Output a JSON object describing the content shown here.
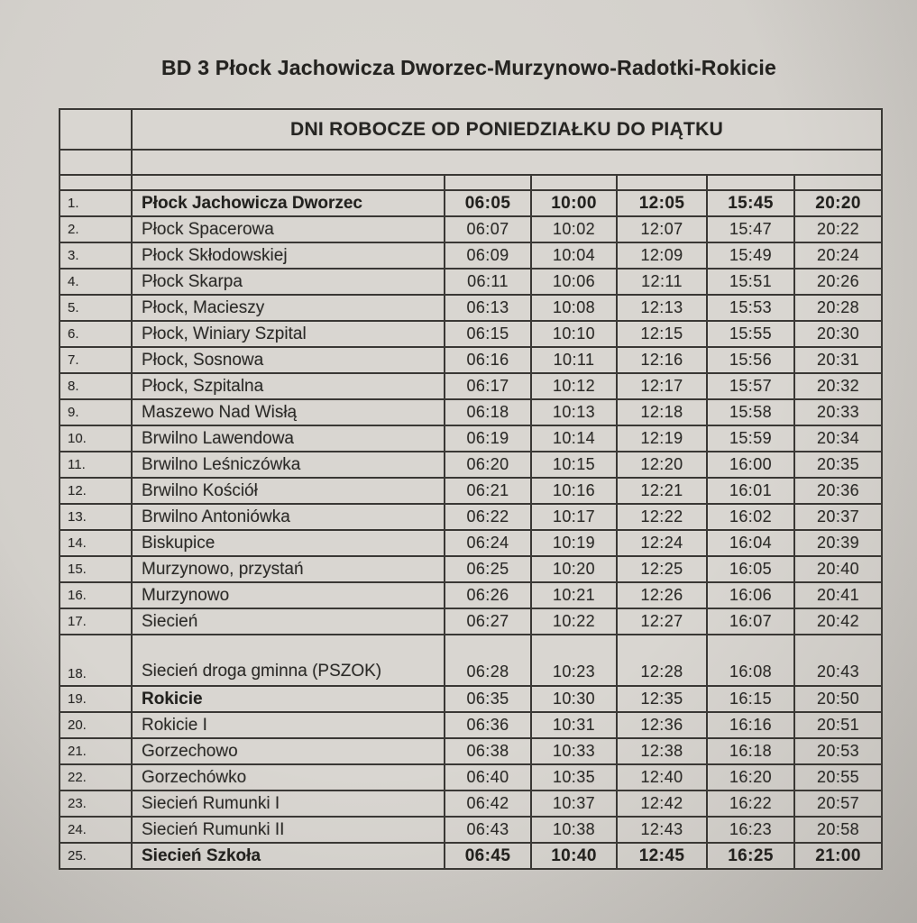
{
  "title": "BD 3 Płock Jachowicza Dworzec-Murzynowo-Radotki-Rokicie",
  "schedule_header": "DNI ROBOCZE OD PONIEDZIAŁKU DO PIĄTKU",
  "colors": {
    "paper": "#d9d6d1",
    "header_band_fill": "#e0ddd8",
    "black_band": "#21201e",
    "border": "#3a3835",
    "text": "#2b2a27"
  },
  "table": {
    "rows": [
      {
        "num": "1.",
        "stop": "Płock Jachowicza Dworzec",
        "times": [
          "06:05",
          "10:00",
          "12:05",
          "15:45",
          "20:20"
        ],
        "bold": true
      },
      {
        "num": "2.",
        "stop": "Płock Spacerowa",
        "times": [
          "06:07",
          "10:02",
          "12:07",
          "15:47",
          "20:22"
        ]
      },
      {
        "num": "3.",
        "stop": "Płock Skłodowskiej",
        "times": [
          "06:09",
          "10:04",
          "12:09",
          "15:49",
          "20:24"
        ]
      },
      {
        "num": "4.",
        "stop": "Płock Skarpa",
        "times": [
          "06:11",
          "10:06",
          "12:11",
          "15:51",
          "20:26"
        ]
      },
      {
        "num": "5.",
        "stop": "Płock, Macieszy",
        "times": [
          "06:13",
          "10:08",
          "12:13",
          "15:53",
          "20:28"
        ]
      },
      {
        "num": "6.",
        "stop": "Płock, Winiary Szpital",
        "times": [
          "06:15",
          "10:10",
          "12:15",
          "15:55",
          "20:30"
        ]
      },
      {
        "num": "7.",
        "stop": "Płock, Sosnowa",
        "times": [
          "06:16",
          "10:11",
          "12:16",
          "15:56",
          "20:31"
        ]
      },
      {
        "num": "8.",
        "stop": "Płock, Szpitalna",
        "times": [
          "06:17",
          "10:12",
          "12:17",
          "15:57",
          "20:32"
        ]
      },
      {
        "num": "9.",
        "stop": "Maszewo Nad Wisłą",
        "times": [
          "06:18",
          "10:13",
          "12:18",
          "15:58",
          "20:33"
        ]
      },
      {
        "num": "10.",
        "stop": "Brwilno Lawendowa",
        "times": [
          "06:19",
          "10:14",
          "12:19",
          "15:59",
          "20:34"
        ]
      },
      {
        "num": "11.",
        "stop": "Brwilno Leśniczówka",
        "times": [
          "06:20",
          "10:15",
          "12:20",
          "16:00",
          "20:35"
        ]
      },
      {
        "num": "12.",
        "stop": "Brwilno Kościół",
        "times": [
          "06:21",
          "10:16",
          "12:21",
          "16:01",
          "20:36"
        ]
      },
      {
        "num": "13.",
        "stop": "Brwilno Antoniówka",
        "times": [
          "06:22",
          "10:17",
          "12:22",
          "16:02",
          "20:37"
        ]
      },
      {
        "num": "14.",
        "stop": "Biskupice",
        "times": [
          "06:24",
          "10:19",
          "12:24",
          "16:04",
          "20:39"
        ]
      },
      {
        "num": "15.",
        "stop": "Murzynowo, przystań",
        "times": [
          "06:25",
          "10:20",
          "12:25",
          "16:05",
          "20:40"
        ]
      },
      {
        "num": "16.",
        "stop": "Murzynowo",
        "times": [
          "06:26",
          "10:21",
          "12:26",
          "16:06",
          "20:41"
        ]
      },
      {
        "num": "17.",
        "stop": "Siecień",
        "times": [
          "06:27",
          "10:22",
          "12:27",
          "16:07",
          "20:42"
        ]
      },
      {
        "num": "18.",
        "stop": "Siecień droga gminna (PSZOK)",
        "times": [
          "06:28",
          "10:23",
          "12:28",
          "16:08",
          "20:43"
        ],
        "tall": true
      },
      {
        "num": "19.",
        "stop": "Rokicie",
        "times": [
          "06:35",
          "10:30",
          "12:35",
          "16:15",
          "20:50"
        ],
        "bold_name": true
      },
      {
        "num": "20.",
        "stop": "Rokicie I",
        "times": [
          "06:36",
          "10:31",
          "12:36",
          "16:16",
          "20:51"
        ]
      },
      {
        "num": "21.",
        "stop": "Gorzechowo",
        "times": [
          "06:38",
          "10:33",
          "12:38",
          "16:18",
          "20:53"
        ]
      },
      {
        "num": "22.",
        "stop": "Gorzechówko",
        "times": [
          "06:40",
          "10:35",
          "12:40",
          "16:20",
          "20:55"
        ]
      },
      {
        "num": "23.",
        "stop": "Siecień Rumunki I",
        "times": [
          "06:42",
          "10:37",
          "12:42",
          "16:22",
          "20:57"
        ]
      },
      {
        "num": "24.",
        "stop": "Siecień Rumunki II",
        "times": [
          "06:43",
          "10:38",
          "12:43",
          "16:23",
          "20:58"
        ]
      },
      {
        "num": "25.",
        "stop": "Siecień Szkoła",
        "times": [
          "06:45",
          "10:40",
          "12:45",
          "16:25",
          "21:00"
        ],
        "bold": true
      }
    ]
  }
}
